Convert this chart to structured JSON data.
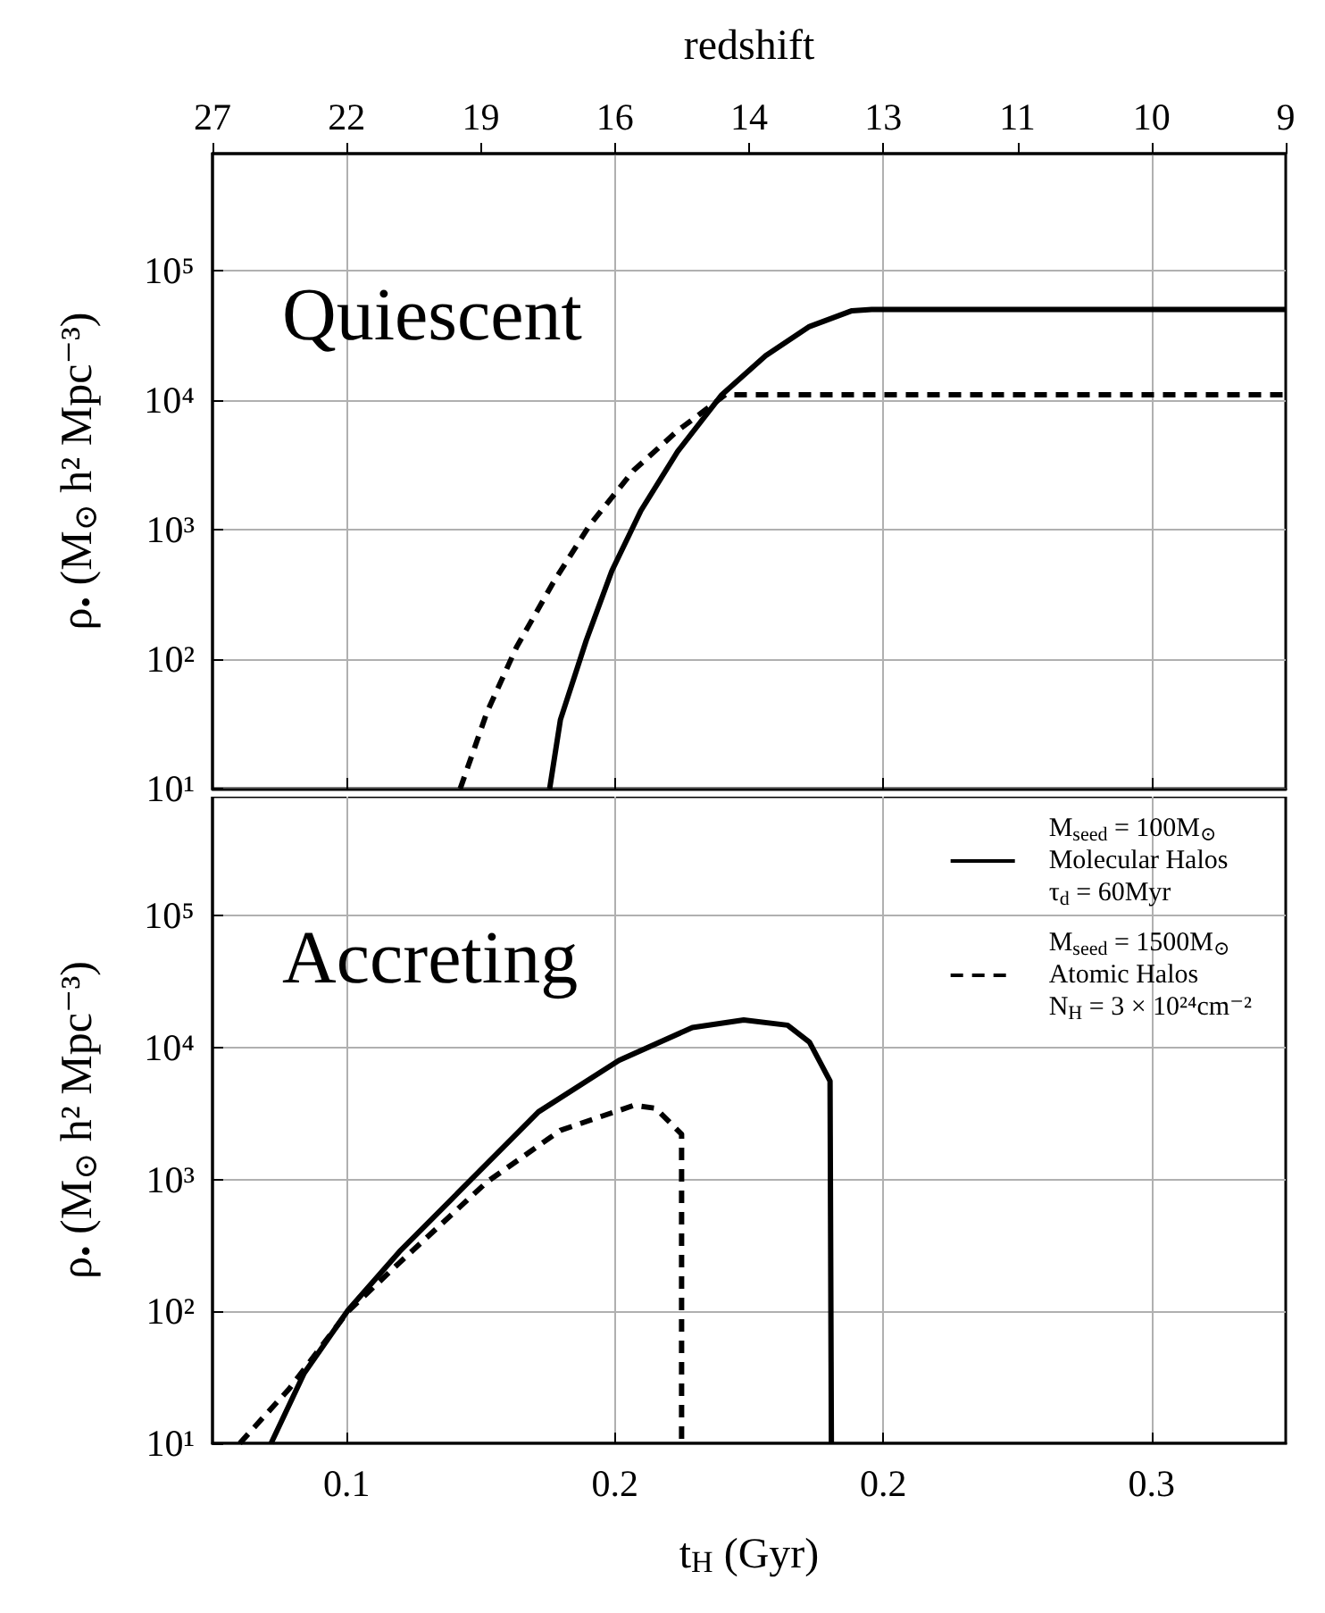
{
  "chart_data": [
    {
      "type": "line",
      "x2label": "redshift",
      "ylabel": "ρ$_{•}$ (M$_{⊙}$ h² Mpc⁻³)",
      "annotations": [
        "Quiescent",
        "27",
        "22",
        "19",
        "16",
        "14",
        "13",
        "11",
        "10",
        "9"
      ],
      "log": "y",
      "grid": true,
      "marker": "none",
      "tick_labels": "y",
      "xlim": [
        0.09,
        0.33
      ],
      "xticks": [
        0.12,
        0.18,
        0.24,
        0.3
      ],
      "ylim": [
        10,
        800000
      ],
      "yticks": [
        {
          "value": 10,
          "label": "10¹"
        },
        {
          "value": 100,
          "label": "10²"
        },
        {
          "value": 1000,
          "label": "10³"
        },
        {
          "value": 10000,
          "label": "10⁴"
        },
        {
          "value": 100000,
          "label": "10⁵"
        }
      ],
      "series": [
        {
          "color": "#000000",
          "line_style": "solid",
          "x": [
            0.1654,
            0.1678,
            0.1736,
            0.1793,
            0.1858,
            0.194,
            0.2039,
            0.2137,
            0.2235,
            0.233,
            0.2374,
            0.33
          ],
          "values": [
            10,
            34,
            140,
            480,
            1400,
            4000,
            11000,
            22000,
            37000,
            49000,
            50000,
            50000
          ]
        },
        {
          "color": "#000000",
          "line_style": "dashed",
          "x": [
            0.1454,
            0.1514,
            0.158,
            0.1662,
            0.1744,
            0.1842,
            0.194,
            0.2047,
            0.33
          ],
          "values": [
            10,
            39,
            124,
            390,
            1090,
            2870,
            5800,
            11000,
            11000
          ]
        }
      ]
    },
    {
      "type": "line",
      "xlabel": "t$_{H}$ (Gyr)",
      "ylabel": "ρ$_{•}$ (M$_{⊙}$ h² Mpc⁻³)",
      "annotations": [
        "Accreting"
      ],
      "log": "y",
      "grid": true,
      "marker": "none",
      "legend": "top right",
      "xlim": [
        0.09,
        0.33
      ],
      "xticks": [
        {
          "value": 0.12,
          "label": "0.1"
        },
        {
          "value": 0.18,
          "label": "0.2"
        },
        {
          "value": 0.24,
          "label": "0.2"
        },
        {
          "value": 0.3,
          "label": "0.3"
        }
      ],
      "ylim": [
        10,
        800000
      ],
      "yticks": [
        {
          "value": 10,
          "label": "10¹"
        },
        {
          "value": 100,
          "label": "10²"
        },
        {
          "value": 1000,
          "label": "10³"
        },
        {
          "value": 10000,
          "label": "10⁴"
        },
        {
          "value": 100000,
          "label": "10⁵"
        }
      ],
      "series": [
        {
          "name": "M$_{seed}$ = 100M$_{⊙}$\nMolecular Halos\nτ$_{d}$ = 60Myr",
          "color": "#000000",
          "line_style": "solid",
          "x": [
            0.1031,
            0.1105,
            0.1203,
            0.1318,
            0.1449,
            0.1629,
            0.1809,
            0.1973,
            0.2088,
            0.2186,
            0.2235,
            0.2281,
            0.2284
          ],
          "values": [
            10,
            34,
            102,
            284,
            794,
            3260,
            8000,
            14200,
            16200,
            14800,
            11000,
            5590,
            10
          ]
        },
        {
          "name": "M$_{seed}$ = 1500M$_{⊙}$\nAtomic Halos\nN$_{H}$ = 3 × 10²⁴cm⁻²",
          "color": "#000000",
          "line_style": "dashed",
          "x": [
            0.0961,
            0.1072,
            0.1203,
            0.1318,
            0.1514,
            0.1678,
            0.1842,
            0.1891,
            0.1949,
            0.1949
          ],
          "values": [
            10,
            26,
            100,
            234,
            960,
            2360,
            3650,
            3470,
            2210,
            10
          ]
        }
      ]
    }
  ]
}
